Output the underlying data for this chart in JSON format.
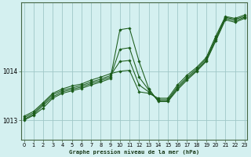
{
  "title": "Graphe pression niveau de la mer (hPa)",
  "background_color": "#d4f0f0",
  "grid_color": "#a0c8c8",
  "line_color": "#1a5c1a",
  "marker_color": "#1a5c1a",
  "x_ticks": [
    0,
    1,
    2,
    3,
    4,
    5,
    6,
    7,
    8,
    9,
    10,
    11,
    12,
    13,
    14,
    15,
    16,
    17,
    18,
    19,
    20,
    21,
    22,
    23
  ],
  "y_ticks": [
    1013,
    1014
  ],
  "ylim": [
    1012.6,
    1015.4
  ],
  "xlim": [
    -0.3,
    23.3
  ],
  "series": [
    [
      1013.0,
      1013.1,
      1013.25,
      1013.45,
      1013.55,
      1013.6,
      1013.65,
      1013.72,
      1013.78,
      1013.85,
      1014.85,
      1014.88,
      1014.2,
      1013.65,
      1013.38,
      1013.38,
      1013.62,
      1013.82,
      1014.0,
      1014.2,
      1014.62,
      1015.05,
      1015.0,
      1015.08
    ],
    [
      1013.02,
      1013.12,
      1013.3,
      1013.48,
      1013.58,
      1013.63,
      1013.68,
      1013.75,
      1013.81,
      1013.88,
      1014.45,
      1014.48,
      1013.88,
      1013.62,
      1013.4,
      1013.4,
      1013.65,
      1013.85,
      1014.02,
      1014.22,
      1014.65,
      1015.08,
      1015.03,
      1015.1
    ],
    [
      1013.05,
      1013.15,
      1013.33,
      1013.52,
      1013.61,
      1013.66,
      1013.71,
      1013.78,
      1013.84,
      1013.91,
      1014.2,
      1014.22,
      1013.72,
      1013.58,
      1013.42,
      1013.42,
      1013.68,
      1013.88,
      1014.05,
      1014.25,
      1014.68,
      1015.1,
      1015.06,
      1015.12
    ],
    [
      1013.08,
      1013.18,
      1013.36,
      1013.55,
      1013.64,
      1013.7,
      1013.74,
      1013.82,
      1013.88,
      1013.95,
      1014.0,
      1014.02,
      1013.58,
      1013.55,
      1013.45,
      1013.45,
      1013.72,
      1013.92,
      1014.08,
      1014.28,
      1014.72,
      1015.12,
      1015.08,
      1015.15
    ]
  ]
}
